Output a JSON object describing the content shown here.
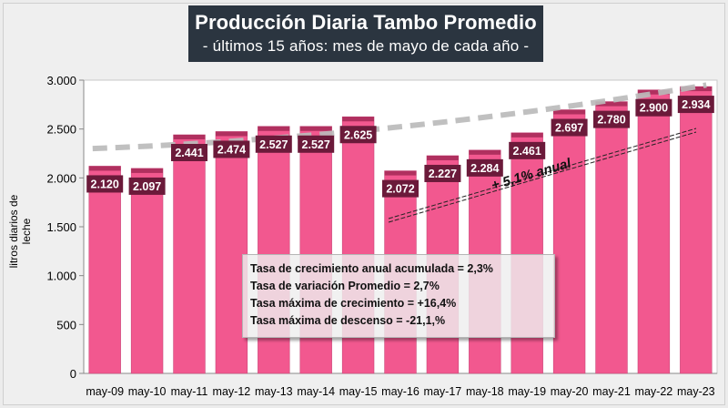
{
  "chart_data": {
    "type": "bar",
    "title": "Producción Diaria Tambo Promedio",
    "subtitle": "- últimos 15 años: mes de mayo de cada año -",
    "ylabel": "litros diarios de leche",
    "ylim": [
      0,
      3000
    ],
    "ytick_values": [
      0,
      500,
      1000,
      1500,
      2000,
      2500,
      3000
    ],
    "ytick_labels": [
      "0",
      "500",
      "1.000",
      "1.500",
      "2.000",
      "2.500",
      "3.000"
    ],
    "categories": [
      "may-09",
      "may-10",
      "may-11",
      "may-12",
      "may-13",
      "may-14",
      "may-15",
      "may-16",
      "may-17",
      "may-18",
      "may-19",
      "may-20",
      "may-21",
      "may-22",
      "may-23"
    ],
    "values": [
      2120,
      2097,
      2441,
      2474,
      2527,
      2527,
      2625,
      2072,
      2227,
      2284,
      2461,
      2697,
      2780,
      2900,
      2934
    ],
    "value_labels": [
      "2.120",
      "2.097",
      "2.441",
      "2.474",
      "2.527",
      "2.527",
      "2.625",
      "2.072",
      "2.227",
      "2.284",
      "2.461",
      "2.697",
      "2.780",
      "2.900",
      "2.934"
    ],
    "trend": {
      "start": 2300,
      "end": 2950
    },
    "trend_annotation": "+ 5,1% anual",
    "grid": false,
    "legend": "none",
    "bar_color": "#f2588f",
    "bar_top_color": "#b0305f",
    "label_bg_color": "#6b1a3a",
    "trend_color": "#bbbbbb"
  },
  "stats": [
    "Tasa de crecimiento anual acumulada = 2,3%",
    "Tasa de variación Promedio = 2,7%",
    "Tasa máxima de crecimiento = +16,4%",
    "Tasa máxima de descenso = -21,1,%"
  ]
}
